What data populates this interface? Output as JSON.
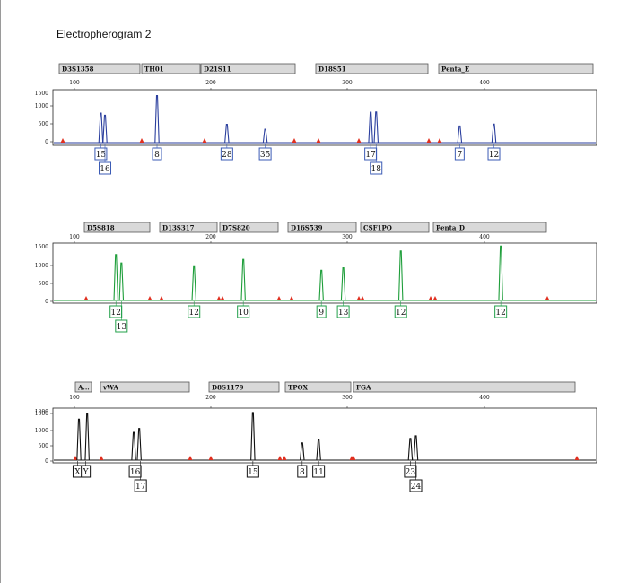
{
  "page": {
    "title": "Electropherogram 2"
  },
  "chart_data": [
    {
      "type": "line",
      "title": "",
      "dye_color": "#2b3f9e",
      "box_color": "#3b5bb5",
      "x_ticks": [
        "100",
        "200",
        "300",
        "400"
      ],
      "y_ticks": [
        "1500",
        "1000",
        "500",
        "0"
      ],
      "loci": [
        {
          "name": "D3S1358"
        },
        {
          "name": "TH01"
        },
        {
          "name": "D21S11"
        },
        {
          "name": "D18S51"
        },
        {
          "name": "Penta_E"
        }
      ],
      "peaks": [
        {
          "size": 123,
          "height": 1100
        },
        {
          "size": 126,
          "height": 1020
        },
        {
          "size": 164,
          "height": 1750
        },
        {
          "size": 215,
          "height": 680
        },
        {
          "size": 243,
          "height": 500
        },
        {
          "size": 320,
          "height": 1130
        },
        {
          "size": 324,
          "height": 1140
        },
        {
          "size": 385,
          "height": 620
        },
        {
          "size": 410,
          "height": 690
        }
      ],
      "alleles": [
        {
          "label": "15",
          "size": 123,
          "row": 1
        },
        {
          "label": "16",
          "size": 126,
          "row": 2
        },
        {
          "label": "8",
          "size": 164,
          "row": 1
        },
        {
          "label": "28",
          "size": 215,
          "row": 1
        },
        {
          "label": "35",
          "size": 243,
          "row": 1
        },
        {
          "label": "17",
          "size": 320,
          "row": 1
        },
        {
          "label": "18",
          "size": 324,
          "row": 2
        },
        {
          "label": "7",
          "size": 385,
          "row": 1
        },
        {
          "label": "12",
          "size": 410,
          "row": 1
        }
      ],
      "xlim": [
        88,
        485
      ],
      "ylim": [
        0,
        1900
      ]
    },
    {
      "type": "line",
      "title": "",
      "dye_color": "#1e9e3a",
      "box_color": "#22a04a",
      "x_ticks": [
        "100",
        "200",
        "300",
        "400"
      ],
      "y_ticks": [
        "1500",
        "1000",
        "500",
        "0"
      ],
      "loci": [
        {
          "name": "D5S818"
        },
        {
          "name": "D13S317"
        },
        {
          "name": "D7S820"
        },
        {
          "name": "D16S539"
        },
        {
          "name": "CSF1PO"
        },
        {
          "name": "Penta_D"
        }
      ],
      "peaks": [
        {
          "size": 134,
          "height": 1900
        },
        {
          "size": 138,
          "height": 1550
        },
        {
          "size": 191,
          "height": 1400
        },
        {
          "size": 227,
          "height": 1700
        },
        {
          "size": 284,
          "height": 1250
        },
        {
          "size": 300,
          "height": 1350
        },
        {
          "size": 342,
          "height": 2050
        },
        {
          "size": 415,
          "height": 2250
        }
      ],
      "alleles": [
        {
          "label": "12",
          "size": 134,
          "row": 1
        },
        {
          "label": "13",
          "size": 138,
          "row": 2
        },
        {
          "label": "12",
          "size": 191,
          "row": 1
        },
        {
          "label": "10",
          "size": 227,
          "row": 1
        },
        {
          "label": "9",
          "size": 284,
          "row": 1
        },
        {
          "label": "13",
          "size": 300,
          "row": 1
        },
        {
          "label": "12",
          "size": 342,
          "row": 1
        },
        {
          "label": "12",
          "size": 415,
          "row": 1
        }
      ],
      "xlim": [
        88,
        485
      ],
      "ylim": [
        0,
        2300
      ]
    },
    {
      "type": "line",
      "title": "",
      "dye_color": "#111111",
      "box_color": "#111111",
      "x_ticks": [
        "100",
        "200",
        "300",
        "400"
      ],
      "y_ticks": [
        "1800",
        "1500",
        "1000",
        "500",
        "0"
      ],
      "loci": [
        {
          "name": "A..."
        },
        {
          "name": "vWA"
        },
        {
          "name": "D8S1179"
        },
        {
          "name": "TPOX"
        },
        {
          "name": "FGA"
        }
      ],
      "peaks": [
        {
          "size": 107,
          "height": 1550
        },
        {
          "size": 113,
          "height": 1750
        },
        {
          "size": 147,
          "height": 1050
        },
        {
          "size": 151,
          "height": 1200
        },
        {
          "size": 234,
          "height": 1800
        },
        {
          "size": 270,
          "height": 650
        },
        {
          "size": 282,
          "height": 780
        },
        {
          "size": 349,
          "height": 820
        },
        {
          "size": 353,
          "height": 920
        }
      ],
      "alleles": [
        {
          "label": "X",
          "size": 106,
          "row": 1
        },
        {
          "label": "Y",
          "size": 112,
          "row": 1
        },
        {
          "label": "16",
          "size": 148,
          "row": 1
        },
        {
          "label": "17",
          "size": 152,
          "row": 2
        },
        {
          "label": "15",
          "size": 234,
          "row": 1
        },
        {
          "label": "8",
          "size": 270,
          "row": 1
        },
        {
          "label": "11",
          "size": 282,
          "row": 1
        },
        {
          "label": "23",
          "size": 349,
          "row": 1
        },
        {
          "label": "24",
          "size": 353,
          "row": 2
        }
      ],
      "xlim": [
        88,
        485
      ],
      "ylim": [
        0,
        1900
      ]
    }
  ]
}
